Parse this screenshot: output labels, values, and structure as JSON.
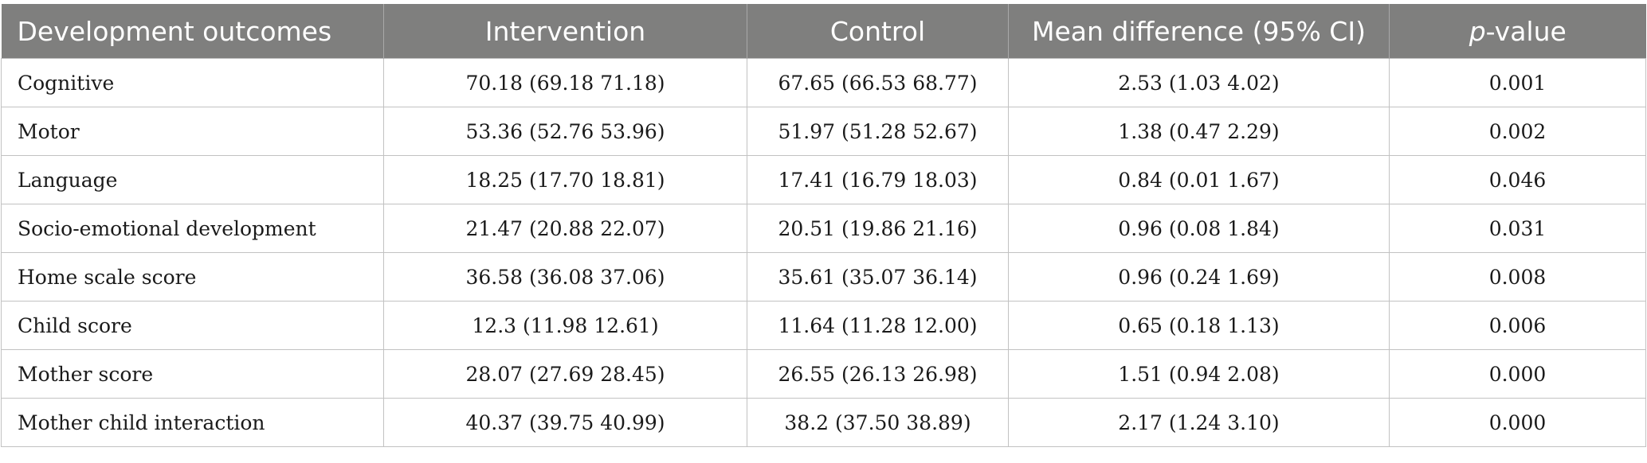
{
  "table": {
    "headers": {
      "outcome": "Development outcomes",
      "intervention": "Intervention",
      "control": "Control",
      "mean_diff": "Mean difference (95% CI)",
      "p_italic": "p",
      "p_rest": "-value"
    },
    "rows": [
      {
        "outcome": "Cognitive",
        "intervention": "70.18 (69.18 71.18)",
        "control": "67.65 (66.53 68.77)",
        "mean_diff": "2.53 (1.03 4.02)",
        "p_value": "0.001"
      },
      {
        "outcome": "Motor",
        "intervention": "53.36 (52.76 53.96)",
        "control": "51.97 (51.28 52.67)",
        "mean_diff": "1.38 (0.47 2.29)",
        "p_value": "0.002"
      },
      {
        "outcome": "Language",
        "intervention": "18.25 (17.70 18.81)",
        "control": "17.41 (16.79 18.03)",
        "mean_diff": "0.84 (0.01 1.67)",
        "p_value": "0.046"
      },
      {
        "outcome": "Socio-emotional development",
        "intervention": "21.47 (20.88 22.07)",
        "control": "20.51 (19.86 21.16)",
        "mean_diff": "0.96 (0.08 1.84)",
        "p_value": "0.031"
      },
      {
        "outcome": "Home scale score",
        "intervention": "36.58 (36.08 37.06)",
        "control": "35.61 (35.07 36.14)",
        "mean_diff": "0.96 (0.24 1.69)",
        "p_value": "0.008"
      },
      {
        "outcome": "Child score",
        "intervention": "12.3 (11.98 12.61)",
        "control": "11.64 (11.28 12.00)",
        "mean_diff": "0.65 (0.18 1.13)",
        "p_value": "0.006"
      },
      {
        "outcome": "Mother score",
        "intervention": "28.07 (27.69 28.45)",
        "control": "26.55 (26.13 26.98)",
        "mean_diff": "1.51 (0.94 2.08)",
        "p_value": "0.000"
      },
      {
        "outcome": "Mother child interaction",
        "intervention": "40.37 (39.75 40.99)",
        "control": "38.2 (37.50 38.89)",
        "mean_diff": "2.17 (1.24 3.10)",
        "p_value": "0.000"
      }
    ]
  }
}
